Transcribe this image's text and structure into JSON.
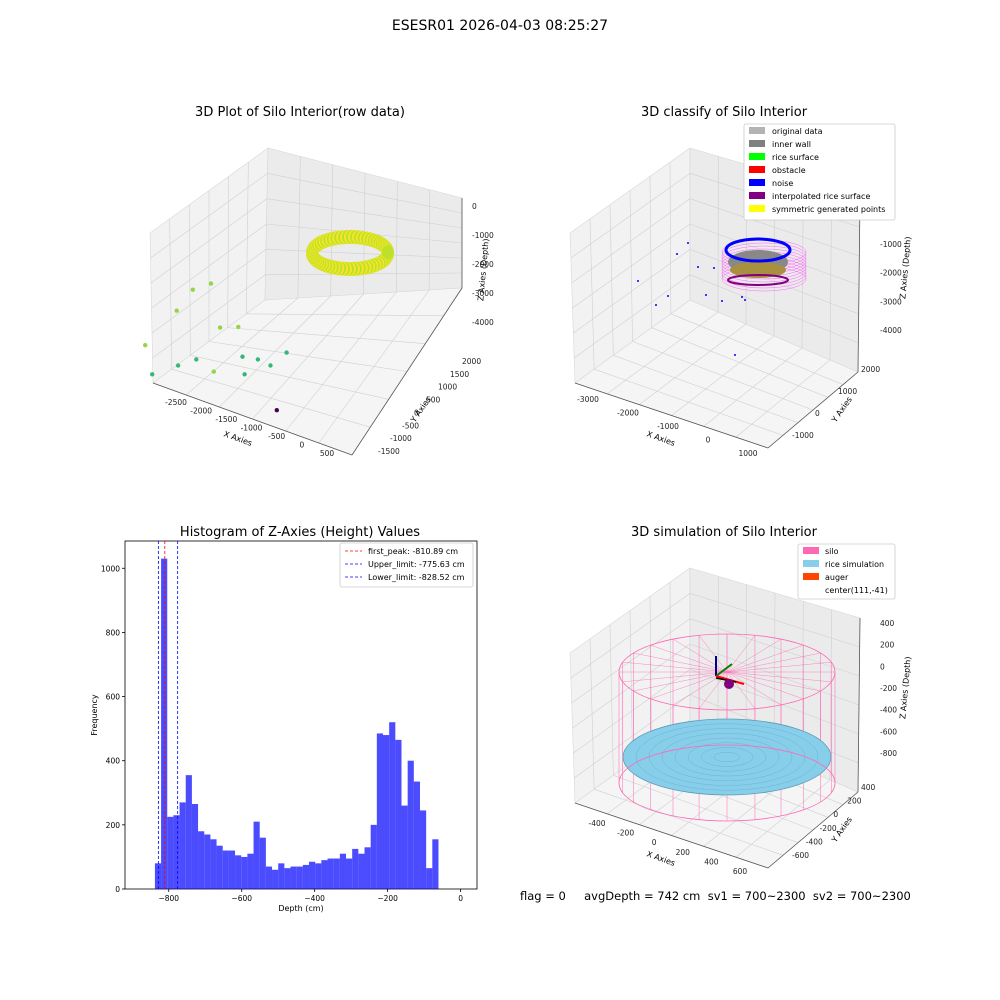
{
  "figure": {
    "suptitle": "ESESR01 2026-04-03 08:25:27",
    "footer": "flag = 0     avgDepth = 742 cm  sv1 = 700~2300  sv2 = 700~2300"
  },
  "chart_data": [
    {
      "type": "scatter",
      "title": "3D Plot of Silo Interior(row data)",
      "xlabel": "X Axies",
      "ylabel": "Y Axies",
      "zlabel": "Z Axies (Depth)",
      "x_ticks": [
        "-2500",
        "-2000",
        "-1500",
        "-1000",
        "-500",
        "0",
        "500"
      ],
      "y_ticks": [
        "-1500",
        "-1000",
        "-500",
        "0",
        "500",
        "1000",
        "1500",
        "2000"
      ],
      "z_ticks": [
        "0",
        "-1000",
        "-2000",
        "-3000",
        "-4000"
      ],
      "grid": true,
      "colormap": [
        "#440154",
        "#31688e",
        "#35b779",
        "#90d743",
        "#fde725"
      ],
      "points": [
        {
          "x": -2400,
          "y": 0,
          "z": -2600,
          "c": 0.7
        },
        {
          "x": -2100,
          "y": 300,
          "z": -1700,
          "c": 0.75
        },
        {
          "x": -2000,
          "y": 600,
          "z": -1300,
          "c": 0.85
        },
        {
          "x": -1800,
          "y": 700,
          "z": -1200,
          "c": 0.8
        },
        {
          "x": -2200,
          "y": -300,
          "z": -3300,
          "c": 0.55
        },
        {
          "x": -1900,
          "y": -200,
          "z": -3100,
          "c": 0.55
        },
        {
          "x": -1700,
          "y": -100,
          "z": -3000,
          "c": 0.6
        },
        {
          "x": -1500,
          "y": 200,
          "z": -2200,
          "c": 0.7
        },
        {
          "x": -1300,
          "y": 300,
          "z": -2300,
          "c": 0.7
        },
        {
          "x": -1400,
          "y": -300,
          "z": -3200,
          "c": 0.75
        },
        {
          "x": -1100,
          "y": -100,
          "z": -2900,
          "c": 0.55
        },
        {
          "x": -1000,
          "y": -300,
          "z": -3300,
          "c": 0.55
        },
        {
          "x": -900,
          "y": -100,
          "z": -3000,
          "c": 0.5
        },
        {
          "x": -700,
          "y": -200,
          "z": -3100,
          "c": 0.5
        },
        {
          "x": -600,
          "y": 100,
          "z": -3000,
          "c": 0.55
        },
        {
          "x": -400,
          "y": -800,
          "z": -4000,
          "c": 0.05
        }
      ],
      "ring": {
        "center_x": 111,
        "center_y": -41,
        "radius": 800,
        "depth": -800,
        "color_range": [
          "#b5de2b",
          "#fde725"
        ]
      }
    },
    {
      "type": "scatter",
      "title": "3D classify of Silo Interior",
      "xlabel": "X Axies",
      "ylabel": "Y Axies",
      "zlabel": "Z Axies (Depth)",
      "x_ticks": [
        "-3000",
        "-2000",
        "-1000",
        "0",
        "1000"
      ],
      "y_ticks": [
        "-1000",
        "0",
        "1000",
        "2000"
      ],
      "z_ticks": [
        "-1000",
        "-2000",
        "-3000",
        "-4000"
      ],
      "grid": true,
      "legend_position": "top-right",
      "legend": [
        {
          "label": "original data",
          "color": "#b3b3b3"
        },
        {
          "label": "inner wall",
          "color": "#808080"
        },
        {
          "label": "rice surface",
          "color": "#00ff00"
        },
        {
          "label": "obstacle",
          "color": "#ff0000"
        },
        {
          "label": "noise",
          "color": "#0000ff"
        },
        {
          "label": "interpolated rice surface",
          "color": "#800080"
        },
        {
          "label": "symmetric generated points",
          "color": "#ffff00"
        }
      ]
    },
    {
      "type": "bar",
      "title": "Histogram of Z-Axies (Height) Values",
      "xlabel": "Depth (cm)",
      "ylabel": "Frequency",
      "xlim": [
        -920,
        45
      ],
      "ylim": [
        0,
        1085
      ],
      "x_ticks": [
        -800,
        -600,
        -400,
        -200,
        0
      ],
      "y_ticks": [
        0,
        200,
        400,
        600,
        800,
        1000
      ],
      "bar_color": "#0000ff",
      "bin_start": -838,
      "bin_width": 16.9,
      "values": [
        80,
        1030,
        225,
        230,
        270,
        355,
        265,
        180,
        170,
        155,
        135,
        120,
        120,
        105,
        100,
        110,
        210,
        160,
        70,
        60,
        80,
        65,
        70,
        70,
        75,
        85,
        80,
        90,
        95,
        95,
        110,
        95,
        125,
        110,
        130,
        200,
        485,
        480,
        520,
        465,
        260,
        400,
        335,
        245,
        65,
        155
      ],
      "vlines": [
        {
          "label": "first_peak: -810.89 cm",
          "x": -810.89,
          "color": "#ff0000"
        },
        {
          "label": "Upper_limit: -775.63 cm",
          "x": -775.63,
          "color": "#0000ff"
        },
        {
          "label": "Lower_limit: -828.52 cm",
          "x": -828.52,
          "color": "#0000ff"
        }
      ],
      "grid": false,
      "legend_position": "top-right"
    },
    {
      "type": "scatter",
      "title": "3D simulation of Silo Interior",
      "xlabel": "X Axies",
      "ylabel": "Y Axies",
      "zlabel": "Z Axies (Depth)",
      "x_ticks": [
        "-400",
        "-200",
        "0",
        "200",
        "400",
        "600"
      ],
      "y_ticks": [
        "-600",
        "-400",
        "-200",
        "0",
        "200",
        "400"
      ],
      "z_ticks": [
        "400",
        "200",
        "0",
        "-200",
        "-400",
        "-600",
        "-800"
      ],
      "grid": true,
      "legend_position": "top-right",
      "legend": [
        {
          "label": "silo",
          "color": "#ff69b4"
        },
        {
          "label": "rice simulation",
          "color": "#87ceeb"
        },
        {
          "label": "auger",
          "color": "#ff4500"
        },
        {
          "label": "center(111,-41)",
          "color": ""
        }
      ]
    }
  ]
}
